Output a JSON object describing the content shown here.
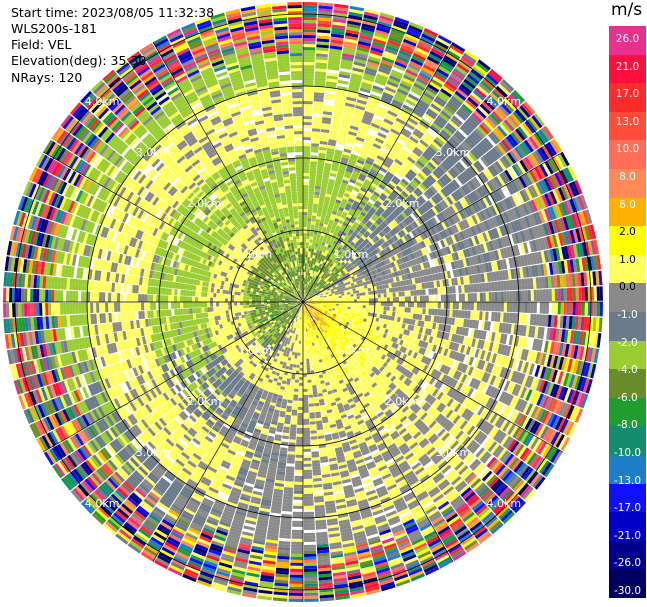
{
  "info": {
    "start_time": "Start time: 2023/08/05 11:32:38",
    "instrument": "WLS200s-181",
    "field": "Field: VEL",
    "elevation": "Elevation(deg): 35.30",
    "nrays": "NRays: 120"
  },
  "colorbar": {
    "unit": "m/s",
    "ticks": [
      "26.0",
      "21.0",
      "17.0",
      "13.0",
      "10.0",
      "8.0",
      "6.0",
      "2.0",
      "1.0",
      "0.0",
      "-1.0",
      "-2.0",
      "-4.0",
      "-6.0",
      "-8.0",
      "-10.0",
      "-13.0",
      "-17.0",
      "-21.0",
      "-26.0",
      "-30.0"
    ],
    "colors": [
      "#e8308c",
      "#ff0f3c",
      "#ff2a2a",
      "#ff4d3a",
      "#ff6e57",
      "#ff8a58",
      "#ffb000",
      "#ffff00",
      "#ffff60",
      "#8a8a8a",
      "#6b7b8a",
      "#9acd32",
      "#6a8c2a",
      "#1e9e2e",
      "#148c6e",
      "#1e7ec8",
      "#1010ff",
      "#0000c8",
      "#00008c",
      "#000060"
    ]
  },
  "chart_data": {
    "type": "ppi",
    "field": "VEL",
    "unit": "m/s",
    "nrays": 120,
    "elevation_deg": 35.3,
    "range_rings_km": [
      1.0,
      2.0,
      3.0,
      4.0
    ],
    "range_ring_labels": [
      "1.0km",
      "2.0km",
      "3.0km",
      "4.0km"
    ],
    "color_scale": [
      -30,
      -26,
      -21,
      -17,
      -13,
      -10,
      -8,
      -6,
      -4,
      -2,
      -1,
      0,
      1,
      2,
      6,
      8,
      10,
      13,
      17,
      21,
      26
    ],
    "pattern": {
      "approaching_region_azimuth_deg": 315,
      "receding_region_azimuth_deg": 135,
      "typical_near_values_m_s": {
        "inner_core": -6.0,
        "east_southeast": 6.0,
        "north_west_ring": -2.0
      },
      "noise_beyond_km": 4.2
    }
  }
}
